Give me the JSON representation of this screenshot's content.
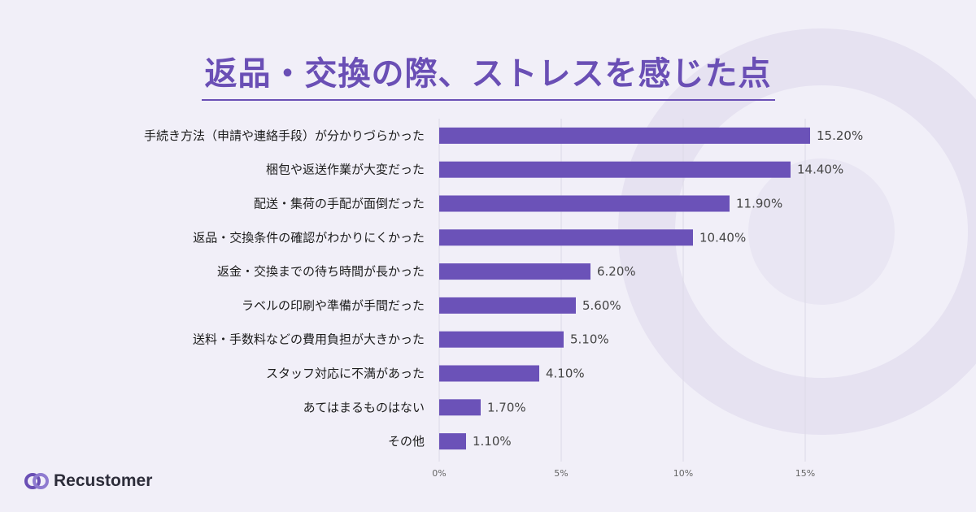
{
  "brand": {
    "name": "Recustomer",
    "accent": "#6a4fb5",
    "bar_color": "#6b52b8"
  },
  "chart_data": {
    "type": "bar",
    "orientation": "horizontal",
    "title": "返品・交換の際、ストレスを感じた点",
    "categories": [
      "手続き方法（申請や連絡手段）が分かりづらかった",
      "梱包や返送作業が大変だった",
      "配送・集荷の手配が面倒だった",
      "返品・交換条件の確認がわかりにくかった",
      "返金・交換までの待ち時間が長かった",
      "ラベルの印刷や準備が手間だった",
      "送料・手数料などの費用負担が大きかった",
      "スタッフ対応に不満があった",
      "あてはまるものはない",
      "その他"
    ],
    "values": [
      15.2,
      14.4,
      11.9,
      10.4,
      6.2,
      5.6,
      5.1,
      4.1,
      1.7,
      1.1
    ],
    "value_labels": [
      "15.20%",
      "14.40%",
      "11.90%",
      "10.40%",
      "6.20%",
      "5.60%",
      "5.10%",
      "4.10%",
      "1.70%",
      "1.10%"
    ],
    "xlim": [
      0,
      15
    ],
    "x_ticks": [
      0,
      5,
      10,
      15
    ],
    "x_tick_labels": [
      "0%",
      "5%",
      "10%",
      "15%"
    ],
    "grid": true,
    "legend": "none"
  }
}
